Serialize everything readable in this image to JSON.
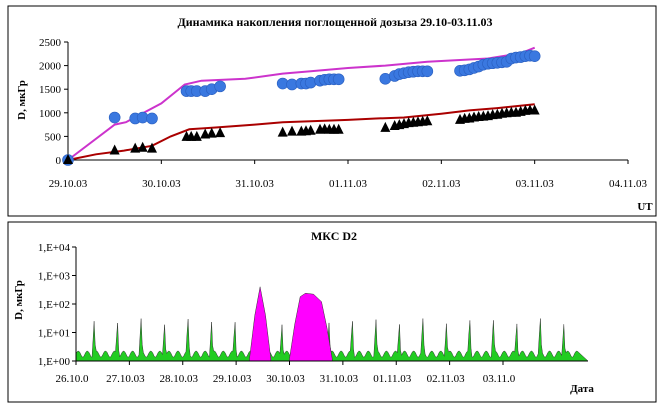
{
  "chart_data": [
    {
      "type": "line",
      "title": "Динамика накопления поглощенной дозыза 29.10-03.11.03",
      "ylabel": "D, мкГр",
      "xlabel": "UT",
      "ylim": [
        0,
        2500
      ],
      "yticks": [
        "0",
        "500",
        "1000",
        "1500",
        "2000",
        "2500"
      ],
      "xticks": [
        "29.10.03",
        "30.10.03",
        "31.10.03",
        "01.11.03",
        "02.11.03",
        "03.11.03",
        "04.11.03"
      ],
      "grid": false,
      "series": [
        {
          "role": "line",
          "color": "#cc33cc",
          "x": [
            0,
            0.5,
            0.62,
            1.0,
            1.25,
            1.43,
            1.9,
            2.3,
            2.6,
            3.0,
            3.4,
            3.85,
            4.5,
            4.85,
            5.0
          ],
          "y": [
            0,
            750,
            800,
            1200,
            1600,
            1680,
            1720,
            1830,
            1880,
            1950,
            2000,
            2080,
            2150,
            2260,
            2380
          ]
        },
        {
          "role": "line",
          "color": "#aa0000",
          "x": [
            0,
            0.3,
            0.6,
            0.9,
            1.1,
            1.3,
            1.6,
            2.0,
            2.3,
            2.6,
            3.0,
            3.3,
            3.6,
            4.0,
            4.3,
            4.6,
            5.0
          ],
          "y": [
            0,
            120,
            200,
            300,
            500,
            650,
            690,
            750,
            800,
            820,
            850,
            880,
            900,
            980,
            1050,
            1100,
            1180
          ]
        },
        {
          "role": "markers",
          "marker": "circle",
          "color": "#3a78e0",
          "x": [
            0,
            0.5,
            0.72,
            0.8,
            0.9,
            1.27,
            1.32,
            1.38,
            1.47,
            1.54,
            1.63,
            2.3,
            2.4,
            2.5,
            2.55,
            2.6,
            2.7,
            2.75,
            2.8,
            2.85,
            2.9,
            3.4,
            3.5,
            3.55,
            3.6,
            3.65,
            3.7,
            3.75,
            3.8,
            3.85,
            4.2,
            4.25,
            4.3,
            4.35,
            4.4,
            4.45,
            4.5,
            4.55,
            4.6,
            4.65,
            4.7,
            4.75,
            4.8,
            4.85,
            4.9,
            4.95,
            5.0
          ],
          "y": [
            0,
            900,
            880,
            900,
            880,
            1460,
            1460,
            1460,
            1460,
            1500,
            1560,
            1620,
            1600,
            1620,
            1620,
            1640,
            1680,
            1700,
            1710,
            1710,
            1710,
            1720,
            1780,
            1820,
            1840,
            1860,
            1870,
            1880,
            1880,
            1880,
            1890,
            1900,
            1920,
            1950,
            1980,
            2020,
            2040,
            2050,
            2060,
            2070,
            2080,
            2150,
            2170,
            2180,
            2200,
            2210,
            2200
          ]
        },
        {
          "role": "markers",
          "marker": "triangle",
          "color": "#000000",
          "x": [
            0,
            0.5,
            0.72,
            0.8,
            0.9,
            1.27,
            1.32,
            1.38,
            1.47,
            1.54,
            1.63,
            2.3,
            2.4,
            2.5,
            2.55,
            2.6,
            2.7,
            2.75,
            2.8,
            2.85,
            2.9,
            3.4,
            3.5,
            3.55,
            3.6,
            3.65,
            3.7,
            3.75,
            3.8,
            3.85,
            4.2,
            4.25,
            4.3,
            4.35,
            4.4,
            4.45,
            4.5,
            4.55,
            4.6,
            4.65,
            4.7,
            4.75,
            4.8,
            4.85,
            4.9,
            4.95,
            5.0
          ],
          "y": [
            0,
            200,
            240,
            260,
            240,
            490,
            490,
            490,
            540,
            560,
            570,
            580,
            600,
            600,
            610,
            620,
            640,
            650,
            640,
            640,
            640,
            680,
            720,
            740,
            760,
            780,
            790,
            800,
            810,
            820,
            850,
            870,
            880,
            900,
            910,
            920,
            930,
            950,
            960,
            980,
            990,
            1000,
            1000,
            1020,
            1040,
            1050,
            1050
          ]
        }
      ]
    },
    {
      "type": "area",
      "title": "МКС D2",
      "ylabel": "D, мкГр",
      "xlabel": "Дата",
      "yscale": "log",
      "yticks": [
        "1,E+00",
        "1,E+01",
        "1,E+02",
        "1,E+03",
        "1,E+04"
      ],
      "xticks": [
        "26.10.0",
        "27.10.03",
        "28.10.03",
        "29.10.03",
        "30.10.03",
        "31.10.03",
        "01.11.03",
        "02.11.03",
        "03.11.0"
      ],
      "grid": false,
      "series": [
        {
          "color": "#ff00ff",
          "x": [
            3.25,
            3.35,
            3.45,
            3.55,
            3.65
          ],
          "y": [
            1.2,
            40,
            400,
            40,
            1.2
          ]
        },
        {
          "color": "#ff00ff",
          "x": [
            4.0,
            4.1,
            4.2,
            4.3,
            4.45,
            4.6,
            4.7,
            4.8
          ],
          "y": [
            1.2,
            20,
            180,
            240,
            220,
            120,
            15,
            1.2
          ]
        },
        {
          "color": "#22cc22",
          "x_period": 0.44,
          "baseline": 1.8,
          "peak": 25
        }
      ]
    }
  ]
}
